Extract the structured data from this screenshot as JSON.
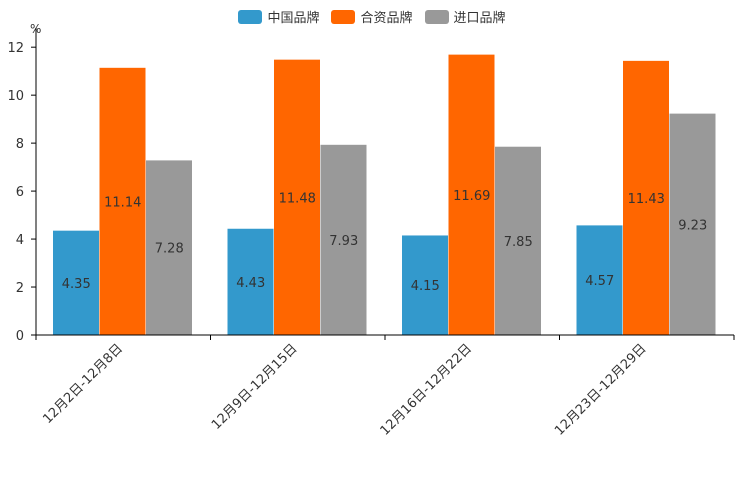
{
  "chart_data": {
    "type": "bar",
    "unit": "%",
    "categories": [
      "12月2日-12月8日",
      "12月9日-12月15日",
      "12月16日-12月22日",
      "12月23日-12月29日"
    ],
    "series": [
      {
        "name": "中国品牌",
        "color": "#3399CC",
        "values": [
          4.35,
          4.43,
          4.15,
          4.57
        ]
      },
      {
        "name": "合资品牌",
        "color": "#FF6600",
        "values": [
          11.14,
          11.48,
          11.69,
          11.43
        ]
      },
      {
        "name": "进口品牌",
        "color": "#999999",
        "values": [
          7.28,
          7.93,
          7.85,
          9.23
        ]
      }
    ],
    "yticks": [
      0,
      2,
      4,
      6,
      8,
      10,
      12
    ],
    "ylim": [
      0,
      12.8
    ],
    "legend_position": "top-center",
    "grid": false
  }
}
